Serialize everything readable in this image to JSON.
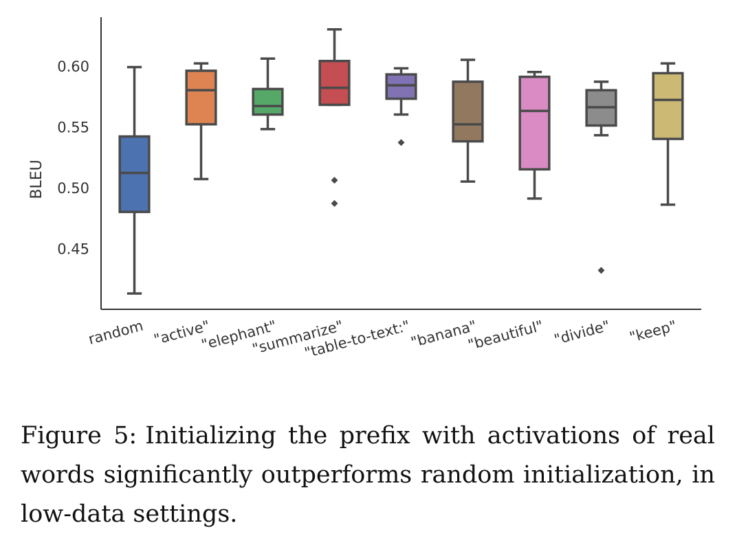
{
  "chart_data": {
    "type": "box",
    "ylabel": "BLEU",
    "xlabel": "",
    "ylim": [
      0.4,
      0.64
    ],
    "yticks": [
      0.45,
      0.5,
      0.55,
      0.6
    ],
    "ytick_labels": [
      "0.45",
      "0.50",
      "0.55",
      "0.60"
    ],
    "categories": [
      "random",
      "\"active\"",
      "\"elephant\"",
      "\"summarize\"",
      "\"table-to-text:\"",
      "\"banana\"",
      "\"beautiful\"",
      "\"divide\"",
      "\"keep\""
    ],
    "boxes": [
      {
        "label": "random",
        "color": "#4C72B0",
        "whisker_low": 0.413,
        "q1": 0.48,
        "median": 0.512,
        "q3": 0.542,
        "whisker_high": 0.599,
        "outliers": []
      },
      {
        "label": "\"active\"",
        "color": "#DD8452",
        "whisker_low": 0.507,
        "q1": 0.552,
        "median": 0.58,
        "q3": 0.596,
        "whisker_high": 0.602,
        "outliers": []
      },
      {
        "label": "\"elephant\"",
        "color": "#55A868",
        "whisker_low": 0.548,
        "q1": 0.56,
        "median": 0.567,
        "q3": 0.581,
        "whisker_high": 0.606,
        "outliers": []
      },
      {
        "label": "\"summarize\"",
        "color": "#C44E52",
        "whisker_low": 0.568,
        "q1": 0.568,
        "median": 0.582,
        "q3": 0.604,
        "whisker_high": 0.63,
        "outliers": [
          0.506,
          0.487
        ]
      },
      {
        "label": "\"table-to-text:\"",
        "color": "#8172B3",
        "whisker_low": 0.56,
        "q1": 0.573,
        "median": 0.584,
        "q3": 0.593,
        "whisker_high": 0.598,
        "outliers": [
          0.537
        ]
      },
      {
        "label": "\"banana\"",
        "color": "#937860",
        "whisker_low": 0.505,
        "q1": 0.538,
        "median": 0.552,
        "q3": 0.587,
        "whisker_high": 0.605,
        "outliers": []
      },
      {
        "label": "\"beautiful\"",
        "color": "#DA8BC3",
        "whisker_low": 0.491,
        "q1": 0.515,
        "median": 0.563,
        "q3": 0.591,
        "whisker_high": 0.595,
        "outliers": []
      },
      {
        "label": "\"divide\"",
        "color": "#8C8C8C",
        "whisker_low": 0.543,
        "q1": 0.551,
        "median": 0.566,
        "q3": 0.58,
        "whisker_high": 0.587,
        "outliers": [
          0.432
        ]
      },
      {
        "label": "\"keep\"",
        "color": "#CCB974",
        "whisker_low": 0.486,
        "q1": 0.54,
        "median": 0.572,
        "q3": 0.594,
        "whisker_high": 0.602,
        "outliers": []
      }
    ]
  },
  "caption": {
    "label": "Figure 5:",
    "text": "Initializing the prefix with activations of real words significantly outperforms random initialization, in low-data settings."
  }
}
